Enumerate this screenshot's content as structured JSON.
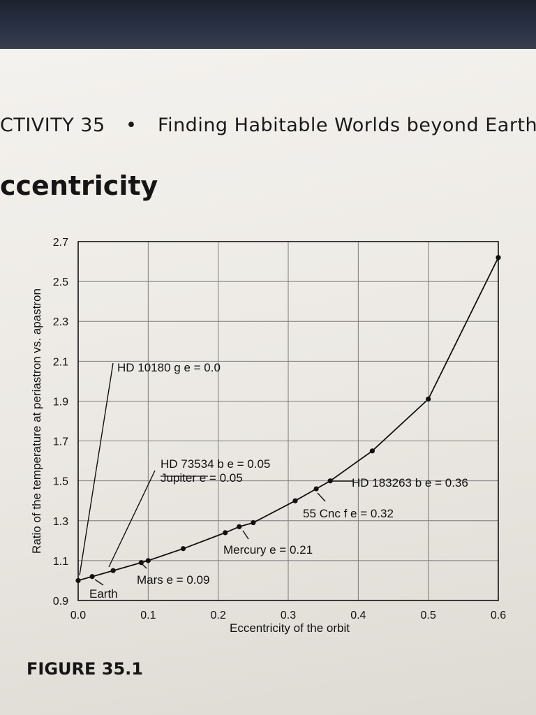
{
  "header": {
    "activity": "CTIVITY 35",
    "bullet": "•",
    "title": "Finding Habitable Worlds beyond Earth"
  },
  "section": {
    "title": "ccentricity"
  },
  "figure": {
    "label": "FIGURE 35.1"
  },
  "chart_data": {
    "type": "line",
    "title": "",
    "xlabel": "Eccentricity of the orbit",
    "ylabel": "Ratio of the temperature at periastron vs. apastron",
    "xlim": [
      0.0,
      0.6
    ],
    "ylim": [
      0.9,
      2.7
    ],
    "x_ticks": [
      "0.0",
      "0.1",
      "0.2",
      "0.3",
      "0.4",
      "0.5",
      "0.6"
    ],
    "y_ticks": [
      "0.9",
      "1.1",
      "1.3",
      "1.5",
      "1.7",
      "1.9",
      "2.1",
      "2.3",
      "2.5",
      "2.7"
    ],
    "grid": true,
    "series": [
      {
        "x": [
          0.0,
          0.02,
          0.05,
          0.09,
          0.1,
          0.15,
          0.21,
          0.23,
          0.25,
          0.31,
          0.34,
          0.36,
          0.42,
          0.5,
          0.6
        ],
        "y": [
          1.0,
          1.02,
          1.05,
          1.09,
          1.1,
          1.16,
          1.24,
          1.27,
          1.29,
          1.4,
          1.46,
          1.5,
          1.65,
          1.91,
          2.62
        ]
      }
    ],
    "annotations": [
      {
        "text": "HD 10180 g e = 0.0",
        "x": 0.0,
        "y": 1.0
      },
      {
        "text": "Earth",
        "x": 0.02,
        "y": 1.02
      },
      {
        "text": "HD 73534 b e = 0.05",
        "x": 0.05,
        "y": 1.05
      },
      {
        "text": "Jupiter e = 0.05",
        "x": 0.05,
        "y": 1.05
      },
      {
        "text": "Mars e = 0.09",
        "x": 0.09,
        "y": 1.09
      },
      {
        "text": "Mercury e = 0.21",
        "x": 0.23,
        "y": 1.27
      },
      {
        "text": "55 Cnc f e = 0.32",
        "x": 0.34,
        "y": 1.46
      },
      {
        "text": "HD 183263 b e = 0.36",
        "x": 0.36,
        "y": 1.5
      }
    ]
  }
}
